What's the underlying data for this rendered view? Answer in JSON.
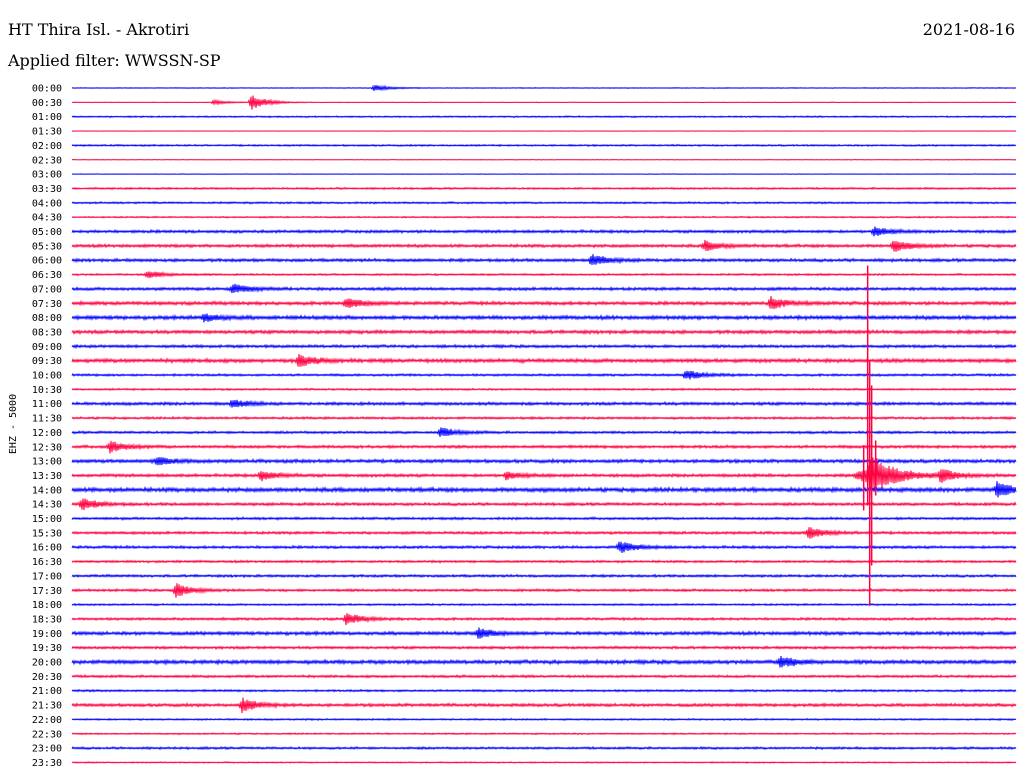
{
  "header": {
    "station": "HT Thira Isl. - Akrotiri",
    "date": "2021-08-16",
    "filter_text": "Applied filter: WWSSN-SP"
  },
  "colors": {
    "line_a": "#0000ff",
    "line_b": "#ff0040"
  },
  "chart_data": {
    "type": "line",
    "title": "HT Thira Isl. - Akrotiri",
    "ylabel": "EHZ - 5000",
    "categories": [
      "00:00",
      "00:30",
      "01:00",
      "01:30",
      "02:00",
      "02:30",
      "03:00",
      "03:30",
      "04:00",
      "04:30",
      "05:00",
      "05:30",
      "06:00",
      "06:30",
      "07:00",
      "07:30",
      "08:00",
      "08:30",
      "09:00",
      "09:30",
      "10:00",
      "10:30",
      "11:00",
      "11:30",
      "12:00",
      "12:30",
      "13:00",
      "13:30",
      "14:00",
      "14:30",
      "15:00",
      "15:30",
      "16:00",
      "16:30",
      "17:00",
      "17:30",
      "18:00",
      "18:30",
      "19:00",
      "19:30",
      "20:00",
      "20:30",
      "21:00",
      "21:30",
      "22:00",
      "22:30",
      "23:00",
      "23:30"
    ],
    "noise_level": [
      0.4,
      0.3,
      0.8,
      0.2,
      0.9,
      0.3,
      0.3,
      1.0,
      1.0,
      0.8,
      1.5,
      1.6,
      1.6,
      1.0,
      1.6,
      1.8,
      2.0,
      1.8,
      1.5,
      2.0,
      1.2,
      1.0,
      1.6,
      1.2,
      1.3,
      1.5,
      1.8,
      1.6,
      2.2,
      1.5,
      1.3,
      1.4,
      1.4,
      1.2,
      1.3,
      1.3,
      1.0,
      1.3,
      1.8,
      1.4,
      2.0,
      1.3,
      1.1,
      1.6,
      0.9,
      0.8,
      1.2,
      0.7
    ],
    "events": [
      {
        "row": 0,
        "x_frac": 0.32,
        "amp": 3
      },
      {
        "row": 1,
        "x_frac": 0.19,
        "amp": 8
      },
      {
        "row": 1,
        "x_frac": 0.15,
        "amp": 2
      },
      {
        "row": 10,
        "x_frac": 0.85,
        "amp": 5
      },
      {
        "row": 11,
        "x_frac": 0.67,
        "amp": 5
      },
      {
        "row": 11,
        "x_frac": 0.87,
        "amp": 6
      },
      {
        "row": 12,
        "x_frac": 0.55,
        "amp": 6
      },
      {
        "row": 13,
        "x_frac": 0.08,
        "amp": 4
      },
      {
        "row": 14,
        "x_frac": 0.17,
        "amp": 5
      },
      {
        "row": 15,
        "x_frac": 0.29,
        "amp": 5
      },
      {
        "row": 15,
        "x_frac": 0.74,
        "amp": 6
      },
      {
        "row": 16,
        "x_frac": 0.14,
        "amp": 4
      },
      {
        "row": 19,
        "x_frac": 0.24,
        "amp": 6
      },
      {
        "row": 20,
        "x_frac": 0.65,
        "amp": 5
      },
      {
        "row": 22,
        "x_frac": 0.17,
        "amp": 4
      },
      {
        "row": 24,
        "x_frac": 0.39,
        "amp": 5
      },
      {
        "row": 25,
        "x_frac": 0.04,
        "amp": 6
      },
      {
        "row": 26,
        "x_frac": 0.09,
        "amp": 4
      },
      {
        "row": 27,
        "x_frac": 0.2,
        "amp": 5
      },
      {
        "row": 27,
        "x_frac": 0.46,
        "amp": 4
      },
      {
        "row": 27,
        "x_frac": 0.92,
        "amp": 7
      },
      {
        "row": 28,
        "x_frac": 0.98,
        "amp": 8
      },
      {
        "row": 29,
        "x_frac": 0.01,
        "amp": 6
      },
      {
        "row": 31,
        "x_frac": 0.78,
        "amp": 6
      },
      {
        "row": 32,
        "x_frac": 0.58,
        "amp": 6
      },
      {
        "row": 35,
        "x_frac": 0.11,
        "amp": 7
      },
      {
        "row": 37,
        "x_frac": 0.29,
        "amp": 6
      },
      {
        "row": 38,
        "x_frac": 0.43,
        "amp": 5
      },
      {
        "row": 40,
        "x_frac": 0.75,
        "amp": 6
      },
      {
        "row": 43,
        "x_frac": 0.18,
        "amp": 7
      }
    ],
    "major_event": {
      "row": 27,
      "x_frac": 0.845,
      "peak": 210,
      "coda": 22
    },
    "grid": false
  }
}
